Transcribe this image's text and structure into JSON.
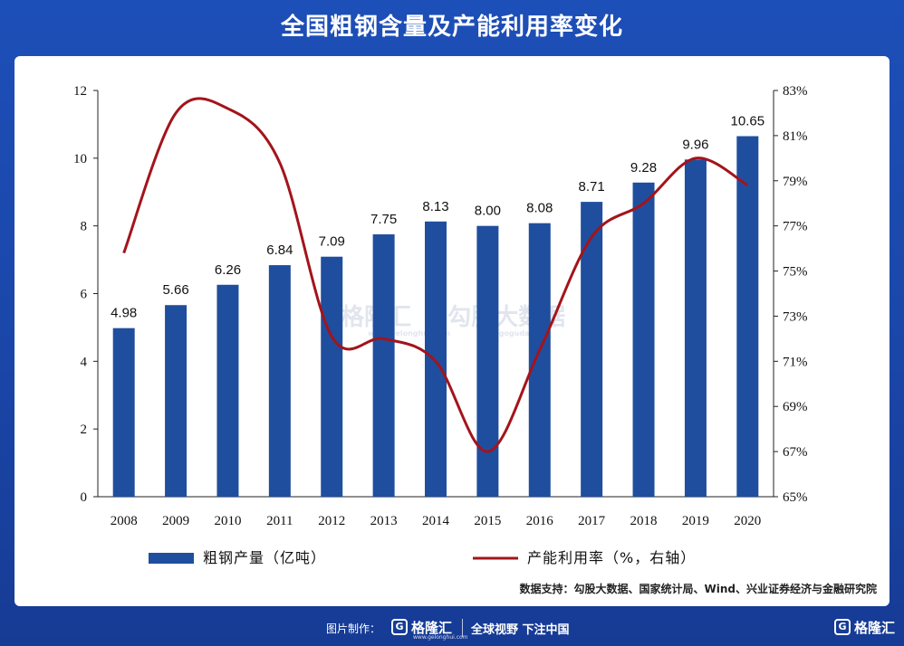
{
  "title": "全国粗钢含量及产能利用率变化",
  "source": "数据支持：勾股大数据、国家统计局、Wind、兴业证券经济与金融研究院",
  "watermark": {
    "left": "格隆汇",
    "right": "勾股大数据",
    "left_sub": "www.gelonghui.com",
    "right_sub": "www.goguda.com"
  },
  "footer": {
    "prefix": "图片制作：",
    "brand": "格隆汇",
    "brand_sub": "www.gelonghui.com",
    "slogan": "全球视野 下注中国",
    "brand_right": "格隆汇",
    "logo_glyph": "G"
  },
  "colors": {
    "bar": "#1f4e9e",
    "line": "#a3141b",
    "background": "#1d4fb8"
  },
  "chart_data": {
    "type": "bar+line",
    "categories": [
      "2008",
      "2009",
      "2010",
      "2011",
      "2012",
      "2013",
      "2014",
      "2015",
      "2016",
      "2017",
      "2018",
      "2019",
      "2020"
    ],
    "series": [
      {
        "name": "粗钢产量（亿吨）",
        "type": "bar",
        "axis": "left",
        "values": [
          4.98,
          5.66,
          6.26,
          6.84,
          7.09,
          7.75,
          8.13,
          8.0,
          8.08,
          8.71,
          9.28,
          9.96,
          10.65
        ],
        "labels": [
          "4.98",
          "5.66",
          "6.26",
          "6.84",
          "7.09",
          "7.75",
          "8.13",
          "8.00",
          "8.08",
          "8.71",
          "9.28",
          "9.96",
          "10.65"
        ]
      },
      {
        "name": "产能利用率（%，右轴）",
        "type": "line",
        "axis": "right",
        "values": [
          75.8,
          82.0,
          82.2,
          79.8,
          72.1,
          72.0,
          71.0,
          67.0,
          71.5,
          76.5,
          78.0,
          80.0,
          78.8
        ]
      }
    ],
    "y_left": {
      "min": 0,
      "max": 12,
      "ticks": [
        "0",
        "2",
        "4",
        "6",
        "8",
        "10",
        "12"
      ]
    },
    "y_right": {
      "min": 65,
      "max": 83,
      "ticks": [
        "65%",
        "67%",
        "69%",
        "71%",
        "73%",
        "75%",
        "77%",
        "79%",
        "81%",
        "83%"
      ]
    },
    "legend_position": "bottom"
  }
}
